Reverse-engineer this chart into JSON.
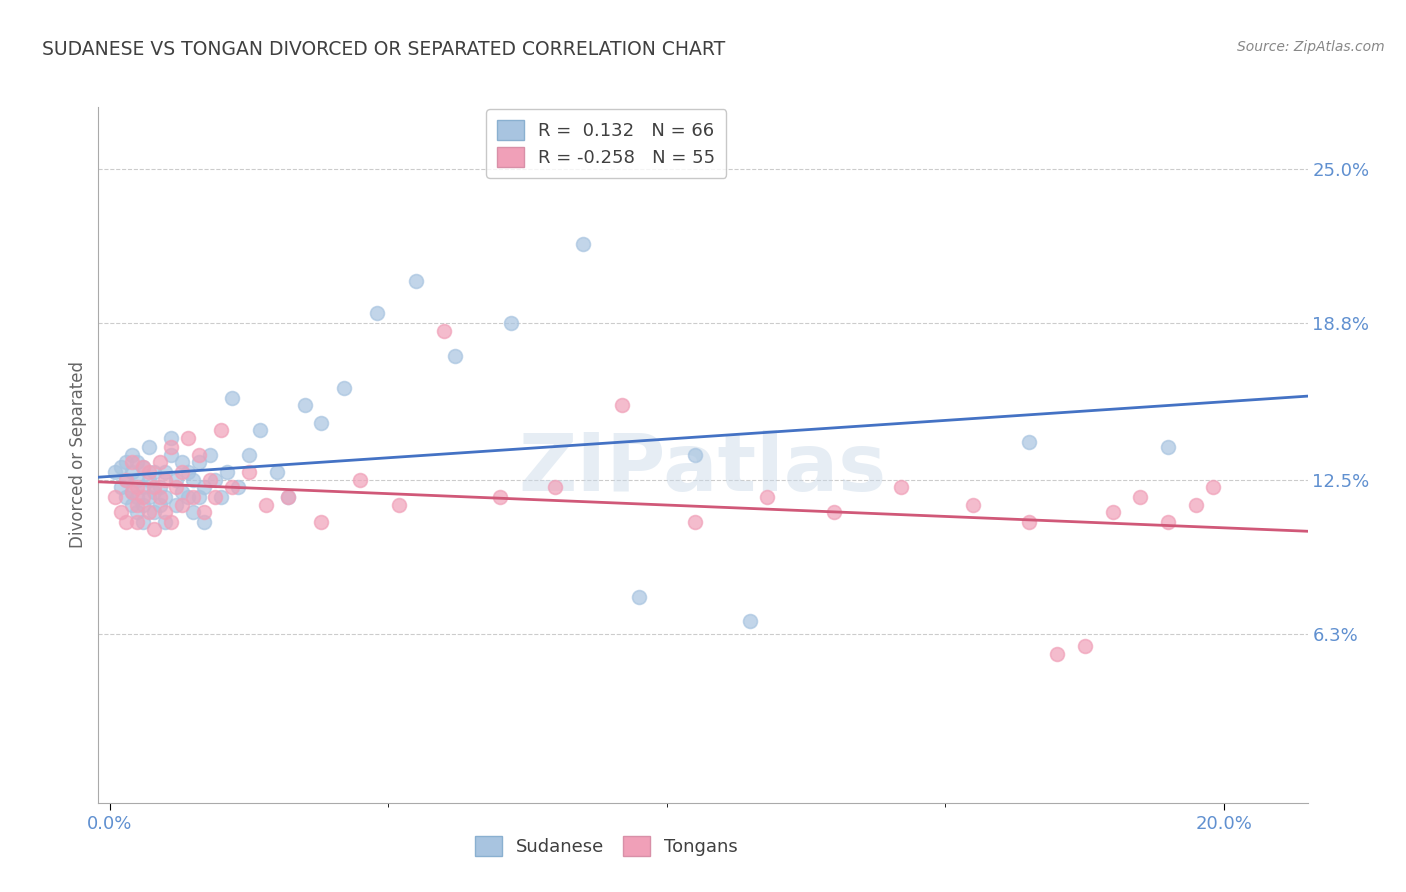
{
  "title": "SUDANESE VS TONGAN DIVORCED OR SEPARATED CORRELATION CHART",
  "source": "Source: ZipAtlas.com",
  "ylabel": "Divorced or Separated",
  "xlabel_ticks": [
    "0.0%",
    "20.0%"
  ],
  "xlabel_vals": [
    0.0,
    0.2
  ],
  "xlabel_minor": [
    0.05,
    0.1,
    0.15
  ],
  "ylabel_ticks": [
    "6.3%",
    "12.5%",
    "18.8%",
    "25.0%"
  ],
  "ylabel_vals": [
    0.063,
    0.125,
    0.188,
    0.25
  ],
  "ylim": [
    -0.005,
    0.275
  ],
  "xlim": [
    -0.002,
    0.215
  ],
  "sudanese_R": 0.132,
  "sudanese_N": 66,
  "tongan_R": -0.258,
  "tongan_N": 55,
  "legend_label1": "Sudanese",
  "legend_label2": "Tongans",
  "watermark": "ZIPatlas",
  "dot_color_blue": "#a8c4e0",
  "dot_color_pink": "#f0a0b8",
  "line_color_blue": "#4472c4",
  "line_color_pink": "#d05878",
  "title_color": "#404040",
  "source_color": "#888888",
  "axis_tick_color": "#6090d0",
  "grid_color": "#cccccc",
  "sudanese_x": [
    0.001,
    0.002,
    0.002,
    0.003,
    0.003,
    0.003,
    0.004,
    0.004,
    0.004,
    0.004,
    0.005,
    0.005,
    0.005,
    0.005,
    0.006,
    0.006,
    0.006,
    0.006,
    0.007,
    0.007,
    0.007,
    0.008,
    0.008,
    0.008,
    0.009,
    0.009,
    0.01,
    0.01,
    0.01,
    0.011,
    0.011,
    0.012,
    0.012,
    0.013,
    0.013,
    0.014,
    0.014,
    0.015,
    0.015,
    0.016,
    0.016,
    0.017,
    0.017,
    0.018,
    0.019,
    0.02,
    0.021,
    0.022,
    0.023,
    0.025,
    0.027,
    0.03,
    0.032,
    0.035,
    0.038,
    0.042,
    0.048,
    0.055,
    0.062,
    0.072,
    0.085,
    0.095,
    0.105,
    0.115,
    0.165,
    0.19
  ],
  "sudanese_y": [
    0.128,
    0.122,
    0.13,
    0.118,
    0.125,
    0.132,
    0.115,
    0.12,
    0.128,
    0.135,
    0.112,
    0.118,
    0.125,
    0.132,
    0.108,
    0.115,
    0.122,
    0.13,
    0.118,
    0.125,
    0.138,
    0.112,
    0.12,
    0.128,
    0.115,
    0.122,
    0.108,
    0.118,
    0.128,
    0.135,
    0.142,
    0.115,
    0.125,
    0.12,
    0.132,
    0.118,
    0.128,
    0.112,
    0.125,
    0.118,
    0.132,
    0.108,
    0.122,
    0.135,
    0.125,
    0.118,
    0.128,
    0.158,
    0.122,
    0.135,
    0.145,
    0.128,
    0.118,
    0.155,
    0.148,
    0.162,
    0.192,
    0.205,
    0.175,
    0.188,
    0.22,
    0.078,
    0.135,
    0.068,
    0.14,
    0.138
  ],
  "tongan_x": [
    0.001,
    0.002,
    0.003,
    0.003,
    0.004,
    0.004,
    0.005,
    0.005,
    0.005,
    0.006,
    0.006,
    0.007,
    0.007,
    0.008,
    0.008,
    0.009,
    0.009,
    0.01,
    0.01,
    0.011,
    0.011,
    0.012,
    0.013,
    0.013,
    0.014,
    0.015,
    0.016,
    0.017,
    0.018,
    0.019,
    0.02,
    0.022,
    0.025,
    0.028,
    0.032,
    0.038,
    0.045,
    0.052,
    0.06,
    0.07,
    0.08,
    0.092,
    0.105,
    0.118,
    0.13,
    0.142,
    0.155,
    0.165,
    0.17,
    0.175,
    0.18,
    0.185,
    0.19,
    0.195,
    0.198
  ],
  "tongan_y": [
    0.118,
    0.112,
    0.125,
    0.108,
    0.12,
    0.132,
    0.115,
    0.122,
    0.108,
    0.13,
    0.118,
    0.112,
    0.128,
    0.105,
    0.122,
    0.118,
    0.132,
    0.112,
    0.125,
    0.108,
    0.138,
    0.122,
    0.115,
    0.128,
    0.142,
    0.118,
    0.135,
    0.112,
    0.125,
    0.118,
    0.145,
    0.122,
    0.128,
    0.115,
    0.118,
    0.108,
    0.125,
    0.115,
    0.185,
    0.118,
    0.122,
    0.155,
    0.108,
    0.118,
    0.112,
    0.122,
    0.115,
    0.108,
    0.055,
    0.058,
    0.112,
    0.118,
    0.108,
    0.115,
    0.122
  ]
}
